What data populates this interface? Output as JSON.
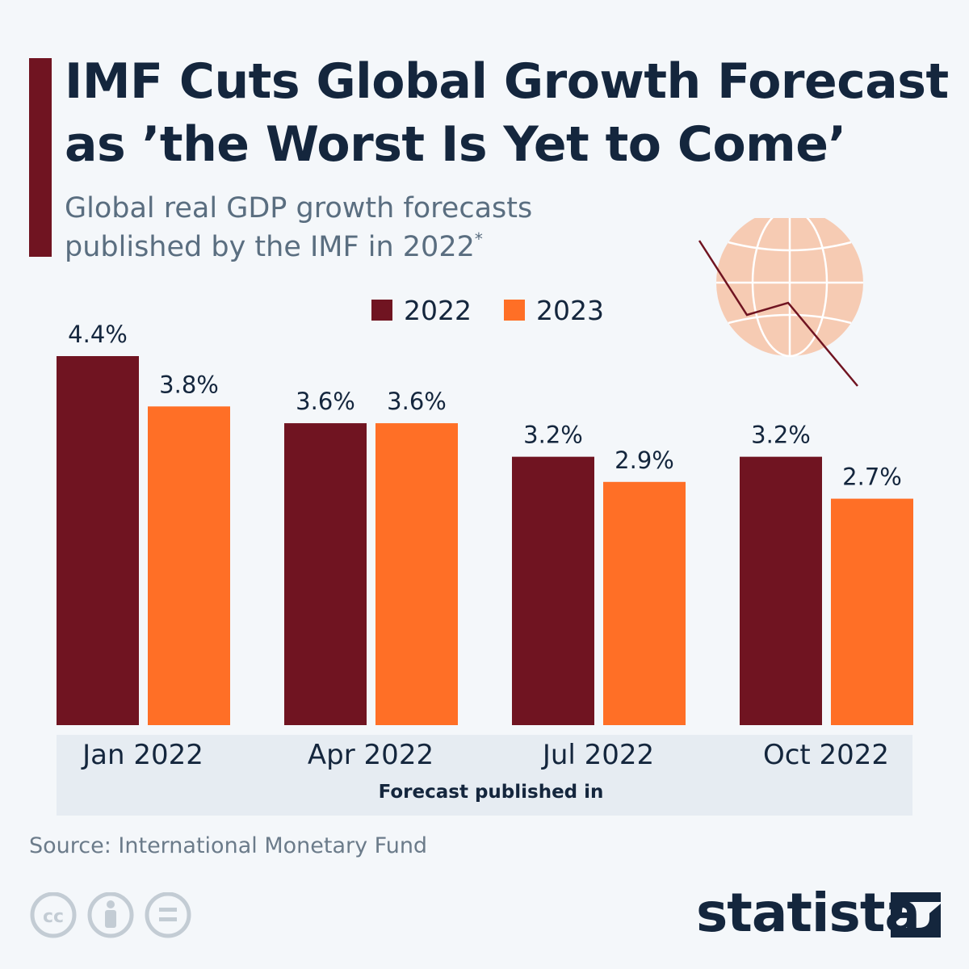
{
  "header": {
    "title_line1": "IMF Cuts Global Growth Forecast",
    "title_line2": "as ’the Worst Is Yet to Come’",
    "subtitle_line1": "Global real GDP growth forecasts",
    "subtitle_line2": "published by the IMF in 2022",
    "subtitle_mark": "*"
  },
  "colors": {
    "series_2022": "#701421",
    "series_2023": "#ff6f26",
    "title": "#14263d",
    "globe": "#f6cbb3"
  },
  "chart_data": {
    "type": "bar",
    "title": "IMF Cuts Global Growth Forecast as ’the Worst Is Yet to Come’",
    "xlabel": "Forecast published in",
    "ylabel": "",
    "ylim": [
      0,
      4.4
    ],
    "grid": false,
    "legend_position": "top-center",
    "categories": [
      "Jan 2022",
      "Apr 2022",
      "Jul 2022",
      "Oct 2022"
    ],
    "series": [
      {
        "name": "2022",
        "color": "#701421",
        "values": [
          4.4,
          3.6,
          3.2,
          3.2
        ],
        "labels": [
          "4.4%",
          "3.6%",
          "3.2%",
          "3.2%"
        ]
      },
      {
        "name": "2023",
        "color": "#ff6f26",
        "values": [
          3.8,
          3.6,
          2.9,
          2.7
        ],
        "labels": [
          "3.8%",
          "3.6%",
          "2.9%",
          "2.7%"
        ]
      }
    ]
  },
  "footer": {
    "source": "Source: International Monetary Fund",
    "brand": "statista",
    "license_icons": [
      "cc-icon",
      "attribution-icon",
      "no-derivatives-icon"
    ],
    "cc_text": "cc"
  }
}
